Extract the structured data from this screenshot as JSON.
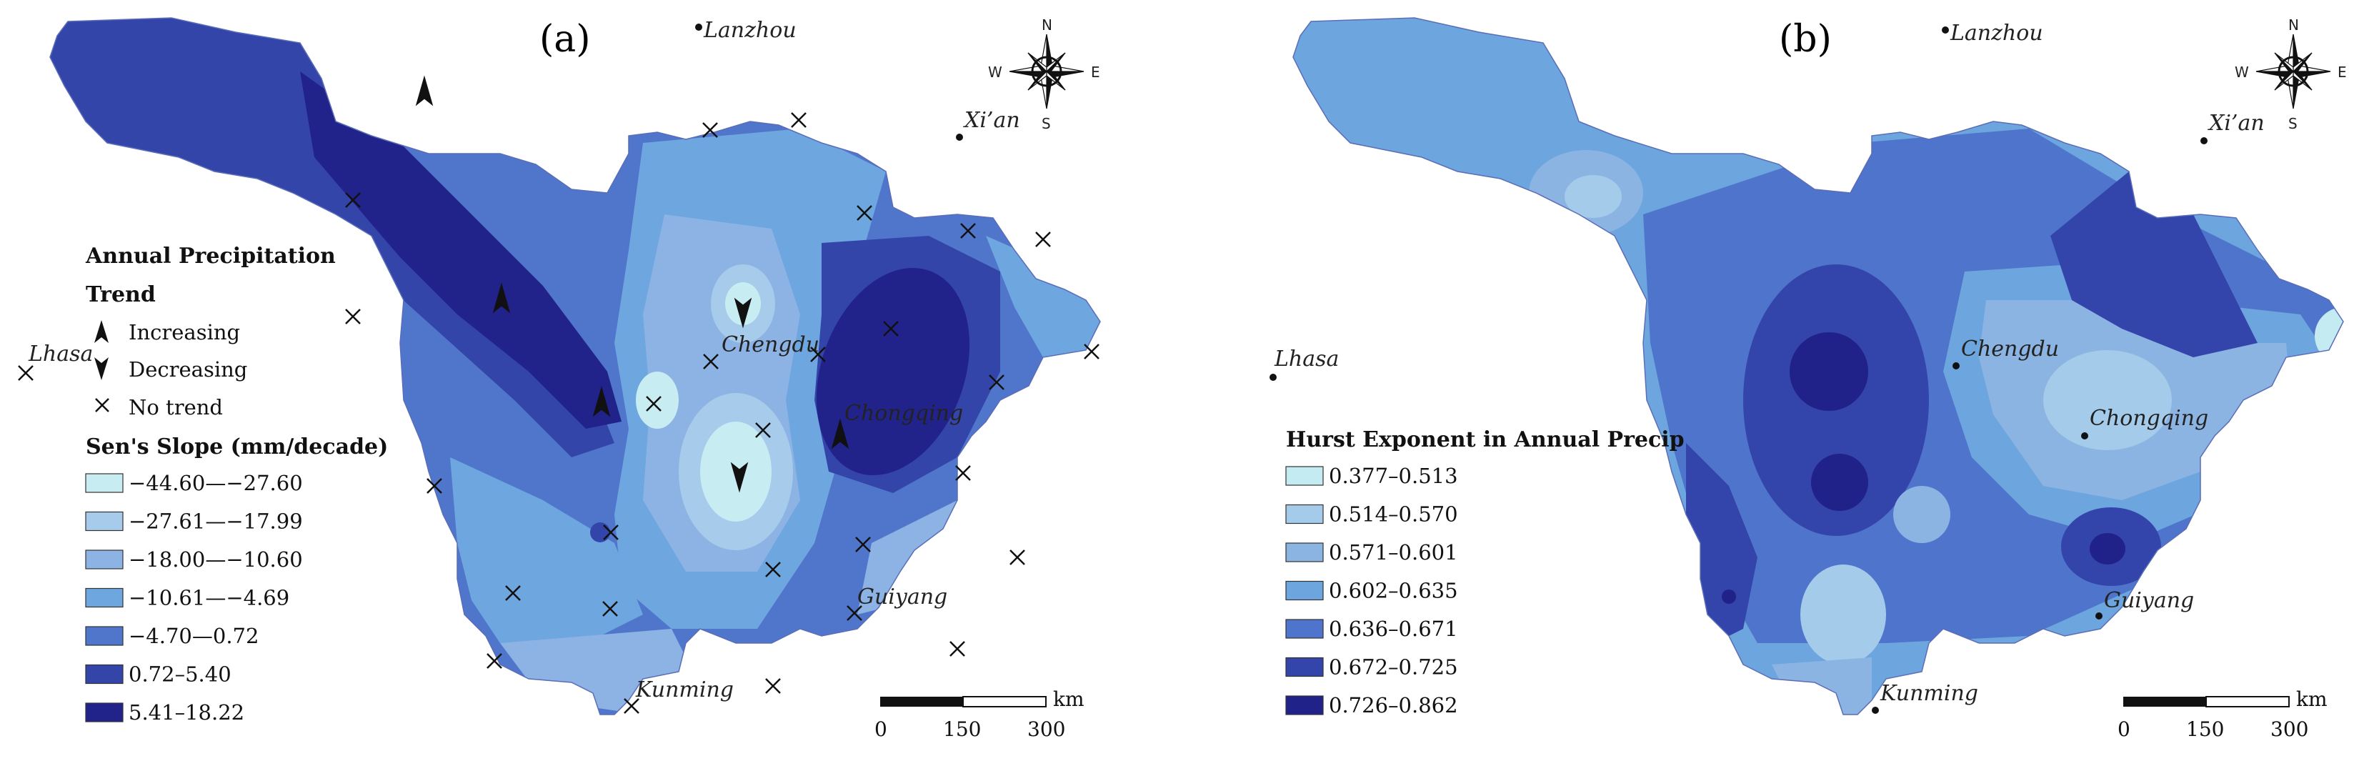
{
  "panels": {
    "a": {
      "label": "(a)",
      "legend_title_line1": "Annual Precipitation",
      "legend_title_line2": "Trend",
      "trend_items": [
        {
          "symbol": "increasing-arrow",
          "label": "Increasing"
        },
        {
          "symbol": "decreasing-arrow",
          "label": "Decreasing"
        },
        {
          "symbol": "x-mark",
          "label": "No trend"
        }
      ],
      "slope_title": "Sen's Slope (mm/decade)",
      "slope_classes": [
        {
          "label": "−44.60—−27.60",
          "color": "#c7ecf2"
        },
        {
          "label": "−27.61—−17.99",
          "color": "#a7cbea"
        },
        {
          "label": "−18.00—−10.60",
          "color": "#8cb3e3"
        },
        {
          "label": "−10.61—−4.69",
          "color": "#6ea6df"
        },
        {
          "label": "−4.70—0.72",
          "color": "#5076cc"
        },
        {
          "label": "0.72–5.40",
          "color": "#3445aa"
        },
        {
          "label": "5.41–18.22",
          "color": "#21228a"
        }
      ]
    },
    "b": {
      "label": "(b)",
      "legend_title": "Hurst Exponent in Annual Precip",
      "hurst_classes": [
        {
          "label": "0.377–0.513",
          "color": "#c5ebf2"
        },
        {
          "label": "0.514–0.570",
          "color": "#a5cbea"
        },
        {
          "label": "0.571–0.601",
          "color": "#8cb4e3"
        },
        {
          "label": "0.602–0.635",
          "color": "#6da6de"
        },
        {
          "label": "0.636–0.671",
          "color": "#4e74cb"
        },
        {
          "label": "0.672–0.725",
          "color": "#3345aa"
        },
        {
          "label": "0.726–0.862",
          "color": "#202189"
        }
      ]
    }
  },
  "cities": {
    "lanzhou": "Lanzhou",
    "xian": "Xi’an",
    "lhasa": "Lhasa",
    "chengdu": "Chengdu",
    "chongqing": "Chongqing",
    "guiyang": "Guiyang",
    "kunming": "Kunming"
  },
  "compass": {
    "n": "N",
    "s": "S",
    "e": "E",
    "w": "W"
  },
  "scale_bar": {
    "unit": "km",
    "ticks": [
      "0",
      "150",
      "300"
    ]
  }
}
